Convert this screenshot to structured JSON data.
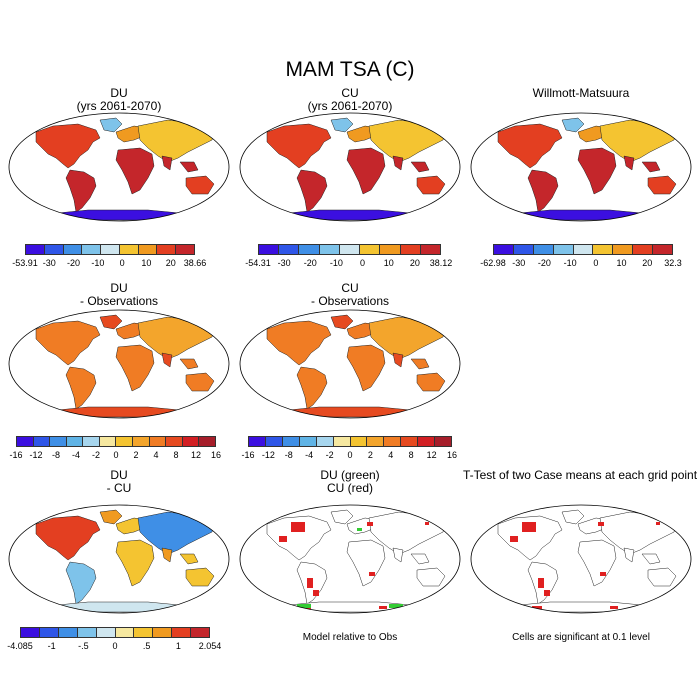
{
  "figure": {
    "title": "MAM TSA (C)"
  },
  "panels": [
    {
      "id": "du",
      "title1": "DU",
      "title2": "(yrs 2061-2070)",
      "style": "abs",
      "colorbar": {
        "labels": [
          "-53.91",
          "-30",
          "-20",
          "-10",
          "0",
          "10",
          "20",
          "38.66"
        ]
      }
    },
    {
      "id": "cu",
      "title1": "CU",
      "title2": "(yrs 2061-2070)",
      "style": "abs",
      "colorbar": {
        "labels": [
          "-54.31",
          "-30",
          "-20",
          "-10",
          "0",
          "10",
          "20",
          "38.12"
        ]
      }
    },
    {
      "id": "obs",
      "title1": "Willmott-Matsuura",
      "title2": "",
      "style": "abs",
      "colorbar": {
        "labels": [
          "-62.98",
          "-30",
          "-20",
          "-10",
          "0",
          "10",
          "20",
          "32.3"
        ]
      }
    },
    {
      "id": "du-obs",
      "title1": "DU",
      "title2": "- Observations",
      "style": "diff",
      "colorbar": {
        "labels": [
          "-16",
          "-12",
          "-8",
          "-4",
          "-2",
          "0",
          "2",
          "4",
          "8",
          "12",
          "16"
        ]
      }
    },
    {
      "id": "cu-obs",
      "title1": "CU",
      "title2": "- Observations",
      "style": "diff",
      "colorbar": {
        "labels": [
          "-16",
          "-12",
          "-8",
          "-4",
          "-2",
          "0",
          "2",
          "4",
          "8",
          "12",
          "16"
        ]
      }
    },
    {
      "id": "du-cu",
      "title1": "DU",
      "title2": "- CU",
      "style": "dudiff",
      "colorbar": {
        "labels": [
          "-4.085",
          "-1",
          "-.5",
          "0",
          ".5",
          "1",
          "2.054"
        ]
      }
    },
    {
      "id": "sig-model",
      "title1": "DU (green)",
      "title2": "CU (red)",
      "style": "sig",
      "note": "Model relative to Obs"
    },
    {
      "id": "ttest",
      "title1": "T-Test of two Case means at each grid point",
      "title2": "",
      "style": "sig",
      "note": "Cells are significant at 0.1 level"
    }
  ],
  "colors": {
    "abs_scale": [
      "#3b0fe0",
      "#2f56e8",
      "#3f8fe6",
      "#7ec3ea",
      "#cfe6ef",
      "#f4c431",
      "#f09a20",
      "#e33f21",
      "#c4262b"
    ],
    "diff_scale": [
      "#3b0fe0",
      "#2f56e8",
      "#3f8fe6",
      "#60b4e6",
      "#a7d6ee",
      "#f6e8a0",
      "#f4c431",
      "#f3a52c",
      "#f07c24",
      "#e64a20",
      "#d21f23",
      "#a61e2a"
    ],
    "dudiff_scale": [
      "#3b0fe0",
      "#2f56e8",
      "#3f8fe6",
      "#7ec3ea",
      "#cfe6ef",
      "#f6e8a0",
      "#f4c431",
      "#f09a20",
      "#e33f21",
      "#c4262b"
    ],
    "sig_red": "#e02020",
    "sig_green": "#33cc33"
  },
  "chart_data": [
    {
      "type": "heatmap",
      "title": "DU (yrs 2061-2070)",
      "colorbar_labels": [
        "-53.91",
        "-30",
        "-20",
        "-10",
        "0",
        "10",
        "20",
        "38.66"
      ],
      "range": [
        -53.91,
        38.66
      ]
    },
    {
      "type": "heatmap",
      "title": "CU (yrs 2061-2070)",
      "colorbar_labels": [
        "-54.31",
        "-30",
        "-20",
        "-10",
        "0",
        "10",
        "20",
        "38.12"
      ],
      "range": [
        -54.31,
        38.12
      ]
    },
    {
      "type": "heatmap",
      "title": "Willmott-Matsuura",
      "colorbar_labels": [
        "-62.98",
        "-30",
        "-20",
        "-10",
        "0",
        "10",
        "20",
        "32.3"
      ],
      "range": [
        -62.98,
        32.3
      ]
    },
    {
      "type": "heatmap",
      "title": "DU - Observations",
      "colorbar_labels": [
        "-16",
        "-12",
        "-8",
        "-4",
        "-2",
        "0",
        "2",
        "4",
        "8",
        "12",
        "16"
      ],
      "range": [
        -16,
        16
      ]
    },
    {
      "type": "heatmap",
      "title": "CU - Observations",
      "colorbar_labels": [
        "-16",
        "-12",
        "-8",
        "-4",
        "-2",
        "0",
        "2",
        "4",
        "8",
        "12",
        "16"
      ],
      "range": [
        -16,
        16
      ]
    },
    {
      "type": "heatmap",
      "title": "DU - CU",
      "colorbar_labels": [
        "-4.085",
        "-1",
        "-.5",
        "0",
        ".5",
        "1",
        "2.054"
      ],
      "range": [
        -4.085,
        2.054
      ]
    },
    {
      "type": "heatmap",
      "title": "DU (green) CU (red)",
      "annotation": "Model relative to Obs"
    },
    {
      "type": "heatmap",
      "title": "T-Test of two Case means at each grid point",
      "annotation": "Cells are significant at 0.1 level"
    }
  ]
}
